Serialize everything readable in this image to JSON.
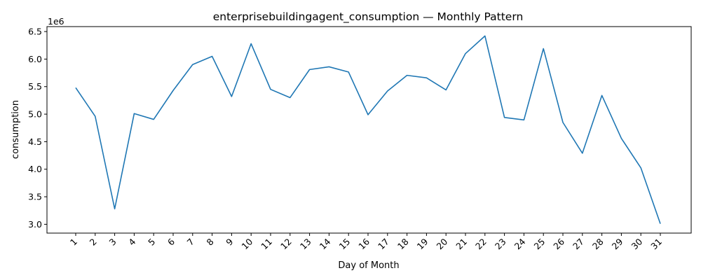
{
  "chart_data": {
    "type": "line",
    "title": "enterprisebuildingagent_consumption — Monthly Pattern",
    "xlabel": "Day of Month",
    "ylabel": "consumption",
    "y_scale_label": "1e6",
    "categories": [
      "1",
      "2",
      "3",
      "4",
      "5",
      "6",
      "7",
      "8",
      "9",
      "10",
      "11",
      "12",
      "13",
      "14",
      "15",
      "16",
      "17",
      "18",
      "19",
      "20",
      "21",
      "22",
      "23",
      "24",
      "25",
      "26",
      "27",
      "28",
      "29",
      "30",
      "31"
    ],
    "series": [
      {
        "values": [
          5480000,
          4960000,
          3280000,
          5010000,
          4905000,
          5430000,
          5900000,
          6050000,
          5320000,
          6280000,
          5450000,
          5300000,
          5810000,
          5860000,
          5765000,
          4990000,
          5420000,
          5705000,
          5660000,
          5440000,
          6100000,
          6420000,
          4940000,
          4895000,
          6190000,
          4850000,
          4290000,
          5340000,
          4560000,
          4025000,
          3010000
        ]
      }
    ],
    "yticks": [
      "3.0",
      "3.5",
      "4.0",
      "4.5",
      "5.0",
      "5.5",
      "6.0",
      "6.5"
    ],
    "ylim": [
      2840000,
      6590000
    ],
    "line_color": "#1f77b4",
    "grid": false,
    "legend": "none"
  }
}
